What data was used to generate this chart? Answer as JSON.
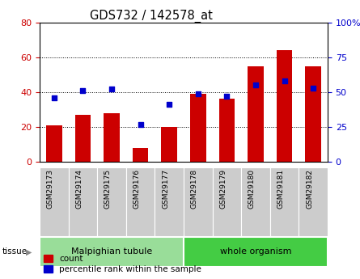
{
  "title": "GDS732 / 142578_at",
  "categories": [
    "GSM29173",
    "GSM29174",
    "GSM29175",
    "GSM29176",
    "GSM29177",
    "GSM29178",
    "GSM29179",
    "GSM29180",
    "GSM29181",
    "GSM29182"
  ],
  "count_values": [
    21,
    27,
    28,
    8,
    20,
    39,
    36,
    55,
    64,
    55
  ],
  "percentile_values": [
    46,
    51,
    52,
    27,
    41,
    49,
    47,
    55,
    58,
    53
  ],
  "bar_color": "#cc0000",
  "dot_color": "#0000cc",
  "ylim_left": [
    0,
    80
  ],
  "ylim_right": [
    0,
    100
  ],
  "yticks_left": [
    0,
    20,
    40,
    60,
    80
  ],
  "yticks_right": [
    0,
    25,
    50,
    75,
    100
  ],
  "tissue_groups": {
    "Malpighian tubule": [
      0,
      4
    ],
    "whole organism": [
      5,
      9
    ]
  },
  "tissue_colors": {
    "Malpighian tubule": "#99dd99",
    "whole organism": "#44cc44"
  },
  "xtick_bg": "#cccccc",
  "legend_items": [
    "count",
    "percentile rank within the sample"
  ],
  "plot_bg": "#ffffff",
  "left_label_color": "#cc0000",
  "right_label_color": "#0000cc"
}
